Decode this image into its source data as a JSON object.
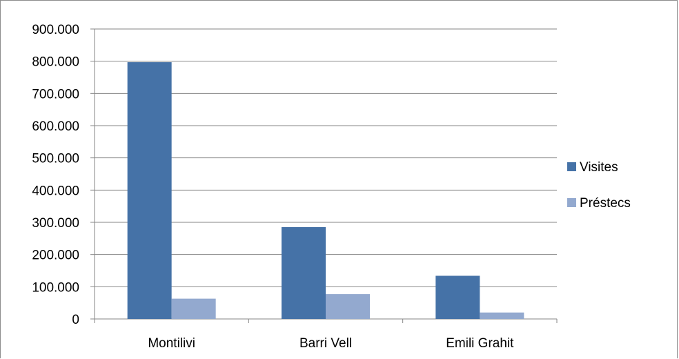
{
  "chart_data": {
    "type": "bar",
    "title": "",
    "xlabel": "",
    "ylabel": "",
    "categories": [
      "Montilivi",
      "Barri Vell",
      "Emili Grahit"
    ],
    "series": [
      {
        "name": "Visites",
        "values": [
          797000,
          285000,
          134000
        ],
        "color": "#4572a7"
      },
      {
        "name": "Préstecs",
        "values": [
          63000,
          77000,
          20000
        ],
        "color": "#93a9cf"
      }
    ],
    "ylim": [
      0,
      900000
    ],
    "yticks": [
      0,
      100000,
      200000,
      300000,
      400000,
      500000,
      600000,
      700000,
      800000,
      900000
    ],
    "ytick_labels": [
      "0",
      "100.000",
      "200.000",
      "300.000",
      "400.000",
      "500.000",
      "600.000",
      "700.000",
      "800.000",
      "900.000"
    ],
    "grid": true,
    "legend": "right"
  }
}
